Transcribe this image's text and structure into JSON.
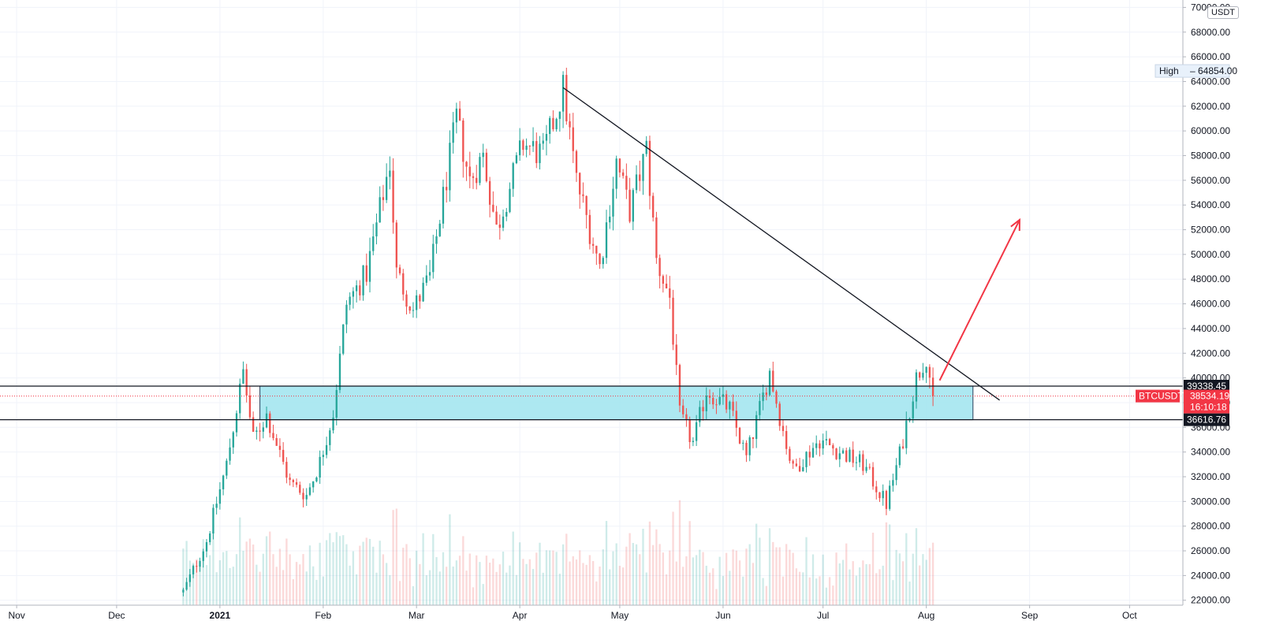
{
  "chart_data": {
    "type": "candlestick",
    "symbol": "BTCUSDT",
    "currency": "USDT",
    "price_axis": {
      "ticks": [
        "22000.00",
        "24000.00",
        "26000.00",
        "28000.00",
        "30000.00",
        "32000.00",
        "34000.00",
        "36000.00",
        "38000.00",
        "40000.00",
        "42000.00",
        "44000.00",
        "46000.00",
        "48000.00",
        "50000.00",
        "52000.00",
        "54000.00",
        "56000.00",
        "58000.00",
        "60000.00",
        "62000.00",
        "64000.00",
        "66000.00",
        "68000.00",
        "70000.00"
      ],
      "range": [
        21600,
        70600
      ]
    },
    "time_axis": {
      "ticks": [
        {
          "label": "Nov",
          "date": "2020-11-01"
        },
        {
          "label": "Dec",
          "date": "2020-12-01"
        },
        {
          "label": "2021",
          "date": "2021-01-01",
          "year": true
        },
        {
          "label": "Feb",
          "date": "2021-02-01"
        },
        {
          "label": "Mar",
          "date": "2021-03-01"
        },
        {
          "label": "Apr",
          "date": "2021-04-01"
        },
        {
          "label": "May",
          "date": "2021-05-01"
        },
        {
          "label": "Jun",
          "date": "2021-06-01"
        },
        {
          "label": "Jul",
          "date": "2021-07-01"
        },
        {
          "label": "Aug",
          "date": "2021-08-01"
        },
        {
          "label": "Sep",
          "date": "2021-09-01"
        },
        {
          "label": "Oct",
          "date": "2021-10-01"
        }
      ],
      "range": [
        "2020-10-27",
        "2021-10-17"
      ]
    },
    "grid": true,
    "price_anchors": [
      [
        "2020-12-21",
        22700
      ],
      [
        "2020-12-28",
        26800
      ],
      [
        "2021-01-03",
        33000
      ],
      [
        "2021-01-08",
        40500
      ],
      [
        "2021-01-11",
        35000
      ],
      [
        "2021-01-15",
        37000
      ],
      [
        "2021-01-22",
        31500
      ],
      [
        "2021-01-27",
        30500
      ],
      [
        "2021-01-31",
        33200
      ],
      [
        "2021-02-04",
        37200
      ],
      [
        "2021-02-08",
        46000
      ],
      [
        "2021-02-14",
        48500
      ],
      [
        "2021-02-21",
        57500
      ],
      [
        "2021-02-23",
        48500
      ],
      [
        "2021-02-28",
        45500
      ],
      [
        "2021-03-05",
        48200
      ],
      [
        "2021-03-13",
        61000
      ],
      [
        "2021-03-17",
        56000
      ],
      [
        "2021-03-21",
        58000
      ],
      [
        "2021-03-25",
        52000
      ],
      [
        "2021-04-02",
        59000
      ],
      [
        "2021-04-08",
        58000
      ],
      [
        "2021-04-14",
        63400
      ],
      [
        "2021-04-18",
        56000
      ],
      [
        "2021-04-25",
        49000
      ],
      [
        "2021-04-30",
        57500
      ],
      [
        "2021-05-04",
        53500
      ],
      [
        "2021-05-09",
        58500
      ],
      [
        "2021-05-12",
        49500
      ],
      [
        "2021-05-16",
        46500
      ],
      [
        "2021-05-19",
        37000
      ],
      [
        "2021-05-23",
        34700
      ],
      [
        "2021-05-27",
        39000
      ],
      [
        "2021-06-03",
        37500
      ],
      [
        "2021-06-08",
        33500
      ],
      [
        "2021-06-15",
        40500
      ],
      [
        "2021-06-19",
        35700
      ],
      [
        "2021-06-22",
        32500
      ],
      [
        "2021-06-30",
        35000
      ],
      [
        "2021-07-06",
        34000
      ],
      [
        "2021-07-13",
        33000
      ],
      [
        "2021-07-20",
        29800
      ],
      [
        "2021-07-24",
        33800
      ],
      [
        "2021-07-29",
        40000
      ],
      [
        "2021-08-01",
        41800
      ],
      [
        "2021-08-03",
        38534
      ]
    ],
    "levels": [
      {
        "price": 39338.45,
        "label": "39338.45"
      },
      {
        "price": 36616.76,
        "label": "36616.76"
      }
    ],
    "zone": {
      "from": "2021-01-13",
      "to": "2021-08-15",
      "low": 36616.76,
      "high": 39338.45,
      "color": "#a4e6f0"
    },
    "trendline": {
      "from": [
        "2021-04-14",
        63500
      ],
      "to": [
        "2021-08-23",
        38200
      ]
    },
    "arrow": {
      "from": [
        "2021-08-05",
        39800
      ],
      "to": [
        "2021-08-29",
        52800
      ],
      "color": "#f23645"
    },
    "high_marker": {
      "label": "High",
      "value": "64854.00",
      "price": 64854
    },
    "last_price": {
      "symbol": "BTCUSDT",
      "price": 38534.19,
      "label": "38534.19",
      "countdown": "16:10:18",
      "color": "#f23645"
    },
    "colors": {
      "up": "#26a69a",
      "down": "#ef5350",
      "grid": "#f0f3fa",
      "axis": "#b2b5be"
    }
  }
}
